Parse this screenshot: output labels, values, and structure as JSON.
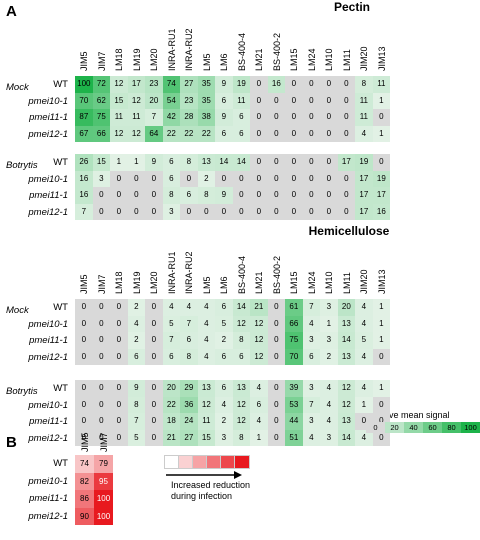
{
  "panelA": {
    "label": "A",
    "sections": [
      {
        "title": "Pectin",
        "columns": [
          "JIM5",
          "JIM7",
          "LM18",
          "LM19",
          "LM20",
          "INRA-RU1",
          "INRA-RU2",
          "LM5",
          "LM6",
          "BS-400-4",
          "LM21",
          "BS-400-2",
          "LM15",
          "LM24",
          "LM10",
          "LM11",
          "JIM20",
          "JIM13"
        ],
        "groups": [
          {
            "condition": "Mock",
            "rows": [
              {
                "genotype": "WT",
                "values": [
                  100,
                  72,
                  12,
                  17,
                  23,
                  74,
                  27,
                  35,
                  9,
                  19,
                  0,
                  16,
                  0,
                  0,
                  0,
                  0,
                  8,
                  11
                ]
              },
              {
                "genotype": "pmei10-1",
                "values": [
                  70,
                  62,
                  15,
                  12,
                  20,
                  54,
                  23,
                  35,
                  6,
                  11,
                  0,
                  0,
                  0,
                  0,
                  0,
                  0,
                  11,
                  1
                ]
              },
              {
                "genotype": "pmei11-1",
                "values": [
                  87,
                  75,
                  11,
                  11,
                  7,
                  42,
                  28,
                  38,
                  9,
                  6,
                  0,
                  0,
                  0,
                  0,
                  0,
                  0,
                  11,
                  0
                ]
              },
              {
                "genotype": "pmei12-1",
                "values": [
                  67,
                  66,
                  12,
                  12,
                  64,
                  22,
                  22,
                  22,
                  6,
                  6,
                  0,
                  0,
                  0,
                  0,
                  0,
                  0,
                  4,
                  1
                ]
              }
            ]
          },
          {
            "condition": "Botrytis",
            "rows": [
              {
                "genotype": "WT",
                "values": [
                  26,
                  15,
                  1,
                  1,
                  9,
                  6,
                  8,
                  13,
                  14,
                  14,
                  0,
                  0,
                  0,
                  0,
                  0,
                  17,
                  19,
                  0
                ]
              },
              {
                "genotype": "pmei10-1",
                "values": [
                  16,
                  3,
                  0,
                  0,
                  0,
                  6,
                  0,
                  2,
                  0,
                  0,
                  0,
                  0,
                  0,
                  0,
                  0,
                  0,
                  17,
                  19
                ]
              },
              {
                "genotype": "pmei11-1",
                "values": [
                  16,
                  0,
                  0,
                  0,
                  0,
                  8,
                  6,
                  8,
                  9,
                  0,
                  0,
                  0,
                  0,
                  0,
                  0,
                  0,
                  17,
                  17
                ]
              },
              {
                "genotype": "pmei12-1",
                "values": [
                  7,
                  0,
                  0,
                  0,
                  0,
                  3,
                  0,
                  0,
                  0,
                  0,
                  0,
                  0,
                  0,
                  0,
                  0,
                  0,
                  17,
                  16
                ]
              }
            ]
          }
        ]
      },
      {
        "title": "Hemicellulose",
        "columns": [
          "JIM5",
          "JIM7",
          "LM18",
          "LM19",
          "LM20",
          "INRA-RU1",
          "INRA-RU2",
          "LM5",
          "LM6",
          "BS-400-4",
          "LM21",
          "BS-400-2",
          "LM15",
          "LM24",
          "LM10",
          "LM11",
          "JIM20",
          "JIM13"
        ],
        "groups": [
          {
            "condition": "Mock",
            "rows": [
              {
                "genotype": "WT",
                "values": [
                  0,
                  0,
                  0,
                  2,
                  0,
                  4,
                  4,
                  4,
                  6,
                  14,
                  21,
                  0,
                  61,
                  7,
                  3,
                  20,
                  4,
                  1
                ]
              },
              {
                "genotype": "pmei10-1",
                "values": [
                  0,
                  0,
                  0,
                  4,
                  0,
                  5,
                  7,
                  4,
                  5,
                  12,
                  12,
                  0,
                  66,
                  4,
                  1,
                  13,
                  4,
                  1
                ]
              },
              {
                "genotype": "pmei11-1",
                "values": [
                  0,
                  0,
                  0,
                  2,
                  0,
                  7,
                  6,
                  4,
                  2,
                  8,
                  12,
                  0,
                  75,
                  3,
                  3,
                  14,
                  5,
                  1
                ]
              },
              {
                "genotype": "pmei12-1",
                "values": [
                  0,
                  0,
                  0,
                  6,
                  0,
                  6,
                  8,
                  4,
                  6,
                  6,
                  12,
                  0,
                  70,
                  6,
                  2,
                  13,
                  4,
                  0
                ]
              }
            ]
          },
          {
            "condition": "Botrytis",
            "rows": [
              {
                "genotype": "WT",
                "values": [
                  0,
                  0,
                  0,
                  9,
                  0,
                  20,
                  29,
                  13,
                  6,
                  13,
                  4,
                  0,
                  39,
                  3,
                  4,
                  12,
                  4,
                  1
                ]
              },
              {
                "genotype": "pmei10-1",
                "values": [
                  0,
                  0,
                  0,
                  8,
                  0,
                  22,
                  36,
                  12,
                  4,
                  12,
                  6,
                  0,
                  53,
                  7,
                  4,
                  12,
                  1,
                  0
                ]
              },
              {
                "genotype": "pmei11-1",
                "values": [
                  0,
                  0,
                  0,
                  7,
                  0,
                  18,
                  24,
                  11,
                  2,
                  12,
                  4,
                  0,
                  44,
                  3,
                  4,
                  13,
                  0,
                  0
                ]
              },
              {
                "genotype": "pmei12-1",
                "values": [
                  0,
                  0,
                  0,
                  5,
                  0,
                  21,
                  27,
                  15,
                  3,
                  8,
                  1,
                  0,
                  51,
                  4,
                  3,
                  14,
                  4,
                  0
                ]
              }
            ]
          }
        ]
      }
    ],
    "legend": {
      "title": "Relative mean signal",
      "ticks": [
        "0",
        "20",
        "40",
        "60",
        "80",
        "100"
      ]
    }
  },
  "panelB": {
    "label": "B",
    "columns": [
      "JIM5",
      "JIM7"
    ],
    "rows": [
      {
        "genotype": "WT",
        "values": [
          74,
          79
        ]
      },
      {
        "genotype": "pmei10-1",
        "values": [
          82,
          95
        ]
      },
      {
        "genotype": "pmei11-1",
        "values": [
          86,
          100
        ]
      },
      {
        "genotype": "pmei12-1",
        "values": [
          90,
          100
        ]
      }
    ],
    "legend": {
      "text1": "Increased reduction",
      "text2": "during infection"
    }
  },
  "colors": {
    "low": "#d9d9d9",
    "high": "#1db34a",
    "reduction_low": "#ffffff",
    "reduction_high": "#e8191f"
  }
}
